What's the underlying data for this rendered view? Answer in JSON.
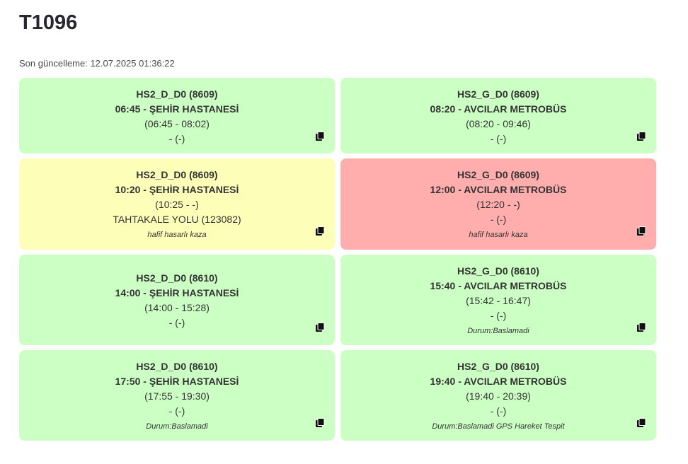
{
  "header": {
    "title": "T1096",
    "last_update": "Son güncelleme: 12.07.2025 01:36:22"
  },
  "colors": {
    "green": "#ccffc4",
    "yellow": "#fdffb8",
    "red": "#ffadad"
  },
  "cards": [
    {
      "route": "HS2_D_D0 (8609)",
      "trip": "06:45 - ŞEHİR HASTANESİ",
      "times": "(06:45 - 08:02)",
      "location": "- (-)",
      "note": "",
      "status": "green",
      "icon": "copy-icon"
    },
    {
      "route": "HS2_G_D0 (8609)",
      "trip": "08:20 - AVCILAR METROBÜS",
      "times": "(08:20 - 09:46)",
      "location": "- (-)",
      "note": "",
      "status": "green",
      "icon": "copy-icon"
    },
    {
      "route": "HS2_D_D0 (8609)",
      "trip": "10:20 - ŞEHİR HASTANESİ",
      "times": "(10:25 - -)",
      "location": "TAHTAKALE YOLU (123082)",
      "note": "hafif hasarlı kaza",
      "status": "yellow",
      "icon": "copy-icon"
    },
    {
      "route": "HS2_G_D0 (8609)",
      "trip": "12:00 - AVCILAR METROBÜS",
      "times": "(12:20 - -)",
      "location": "- (-)",
      "note": "hafif hasarlı kaza",
      "status": "red",
      "icon": "copy-icon"
    },
    {
      "route": "HS2_D_D0 (8610)",
      "trip": "14:00 - ŞEHİR HASTANESİ",
      "times": "(14:00 - 15:28)",
      "location": "- (-)",
      "note": "",
      "status": "green",
      "icon": "copy-icon"
    },
    {
      "route": "HS2_G_D0 (8610)",
      "trip": "15:40 - AVCILAR METROBÜS",
      "times": "(15:42 - 16:47)",
      "location": "- (-)",
      "note": "Durum:Baslamadi",
      "status": "green",
      "icon": "copy-icon"
    },
    {
      "route": "HS2_D_D0 (8610)",
      "trip": "17:50 - ŞEHİR HASTANESİ",
      "times": "(17:55 - 19:30)",
      "location": "- (-)",
      "note": "Durum:Baslamadi",
      "status": "green",
      "icon": "copy-icon"
    },
    {
      "route": "HS2_G_D0 (8610)",
      "trip": "19:40 - AVCILAR METROBÜS",
      "times": "(19:40 - 20:39)",
      "location": "- (-)",
      "note": "Durum:Baslamadi GPS Hareket Tespit",
      "status": "green",
      "icon": "copy-icon"
    }
  ]
}
